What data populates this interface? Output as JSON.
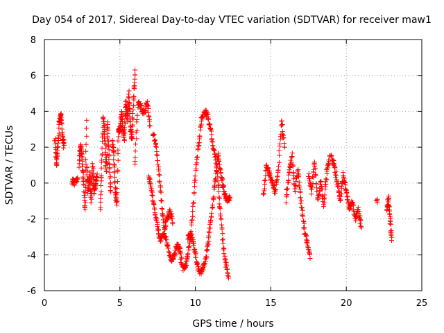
{
  "chart_data": {
    "type": "scatter",
    "title": "Day 054 of 2017, Sidereal Day-to-day VTEC variation (SDTVAR) for receiver maw1",
    "xlabel": "GPS time / hours",
    "ylabel": "SDTVAR / TECUs",
    "xlim": [
      0,
      25
    ],
    "ylim": [
      -6,
      8
    ],
    "xticks": [
      0,
      5,
      10,
      15,
      20,
      25
    ],
    "yticks": [
      -6,
      -4,
      -2,
      0,
      2,
      4,
      6,
      8
    ],
    "xtick_labels": [
      "0",
      "5",
      "10",
      "15",
      "20",
      "25"
    ],
    "ytick_labels": [
      "-6",
      "-4",
      "-2",
      "0",
      "2",
      "4",
      "6",
      "8"
    ],
    "grid": true,
    "marker": "+",
    "color": "#ff0000",
    "series": [
      {
        "name": "maw1",
        "segments": [
          {
            "x": [
              0.7,
              0.8,
              0.9,
              1.0,
              1.1,
              1.2,
              1.3
            ],
            "y": [
              2.5,
              1.0,
              2.0,
              3.5,
              3.8,
              2.5,
              2.1
            ]
          },
          {
            "x": [
              1.85,
              2.0,
              2.2
            ],
            "y": [
              0.1,
              0.0,
              0.3
            ]
          },
          {
            "x": [
              2.3,
              2.4,
              2.5,
              2.6,
              2.7,
              2.8
            ],
            "y": [
              1.0,
              2.2,
              1.5,
              0.0,
              -1.5,
              3.5
            ]
          },
          {
            "x": [
              2.8,
              2.9,
              3.0,
              3.1,
              3.2,
              3.3,
              3.4,
              3.5
            ],
            "y": [
              0.8,
              -0.5,
              0.5,
              -1.0,
              1.0,
              -0.5,
              0.0,
              0.5
            ]
          },
          {
            "x": [
              3.7,
              3.8,
              3.9,
              4.0,
              4.1,
              4.2,
              4.3,
              4.4
            ],
            "y": [
              -1.5,
              1.0,
              3.8,
              2.5,
              0.5,
              3.5,
              1.0,
              -0.5
            ]
          },
          {
            "x": [
              4.5,
              4.6,
              4.7,
              4.8,
              4.9,
              5.0,
              5.1,
              5.2,
              5.3,
              5.4,
              5.5,
              5.6,
              5.7,
              5.8,
              5.9,
              6.0
            ],
            "y": [
              2.5,
              1.5,
              -0.5,
              -1.3,
              3.0,
              2.8,
              4.0,
              3.0,
              2.5,
              4.6,
              3.5,
              5.0,
              3.0,
              2.5,
              4.5,
              6.3
            ]
          },
          {
            "x": [
              6.0,
              6.2,
              6.4,
              6.6,
              6.8,
              7.0
            ],
            "y": [
              1.0,
              4.5,
              4.2,
              3.8,
              4.5,
              3.2
            ]
          },
          {
            "x": [
              7.2,
              7.4,
              7.6,
              7.8,
              8.0,
              8.2,
              8.4,
              8.6,
              8.8,
              9.0
            ],
            "y": [
              2.8,
              2.0,
              0.5,
              -1.5,
              -3.0,
              -3.6,
              -4.3,
              -4.0,
              -3.5,
              -3.8
            ]
          },
          {
            "x": [
              6.9,
              7.1,
              7.3,
              7.5,
              7.7,
              7.9,
              8.1,
              8.3,
              8.5
            ],
            "y": [
              0.5,
              -0.5,
              -1.5,
              -2.5,
              -3.2,
              -2.8,
              -2.0,
              -1.5,
              -2.2
            ]
          },
          {
            "x": [
              9.0,
              9.2,
              9.4,
              9.6,
              9.8,
              10.0,
              10.2,
              10.4,
              10.6,
              10.8,
              11.0,
              11.2,
              11.4,
              11.6,
              11.8,
              12.0,
              12.2
            ],
            "y": [
              -4.0,
              -4.8,
              -4.5,
              -3.5,
              -2.0,
              0.5,
              2.0,
              3.5,
              4.0,
              3.8,
              3.0,
              2.0,
              1.0,
              -1.0,
              -3.0,
              -4.5,
              -5.3
            ]
          },
          {
            "x": [
              9.5,
              9.7,
              9.9,
              10.1,
              10.3,
              10.5,
              10.7,
              10.9,
              11.1,
              11.3,
              11.5
            ],
            "y": [
              -3.0,
              -2.8,
              -3.5,
              -4.5,
              -5.0,
              -4.8,
              -4.2,
              -3.0,
              -1.5,
              0.0,
              1.5
            ]
          },
          {
            "x": [
              11.5,
              11.7,
              11.9,
              12.1,
              12.3
            ],
            "y": [
              1.5,
              0.5,
              -0.5,
              -1.0,
              -0.8
            ]
          },
          {
            "x": [
              14.5,
              14.7,
              14.9,
              15.1,
              15.3,
              15.5,
              15.7,
              15.9
            ],
            "y": [
              -0.8,
              1.0,
              0.5,
              0.0,
              -0.5,
              0.8,
              3.5,
              2.0
            ]
          },
          {
            "x": [
              16.0,
              16.2,
              16.4,
              16.6,
              16.8,
              17.0,
              17.2,
              17.4,
              17.6
            ],
            "y": [
              -1.0,
              0.5,
              1.5,
              -0.5,
              0.8,
              -1.0,
              -2.5,
              -3.2,
              -4.2
            ]
          },
          {
            "x": [
              17.5,
              17.7,
              17.9,
              18.1,
              18.3,
              18.5,
              18.7,
              18.9
            ],
            "y": [
              0.5,
              -0.5,
              1.2,
              -1.0,
              0.0,
              -1.2,
              0.5,
              1.5
            ]
          },
          {
            "x": [
              19.0,
              19.2,
              19.4,
              19.6,
              19.8,
              20.0,
              20.2,
              20.4,
              20.6,
              20.8,
              21.0
            ],
            "y": [
              1.5,
              1.0,
              0.0,
              -1.0,
              0.5,
              -0.5,
              -1.5,
              -1.0,
              -2.0,
              -1.5,
              -2.5
            ]
          },
          {
            "x": [
              22.0
            ],
            "y": [
              -1.0
            ]
          },
          {
            "x": [
              22.7,
              22.8,
              22.9,
              23.0
            ],
            "y": [
              -1.5,
              -0.8,
              -2.0,
              -3.2
            ]
          }
        ]
      }
    ]
  }
}
